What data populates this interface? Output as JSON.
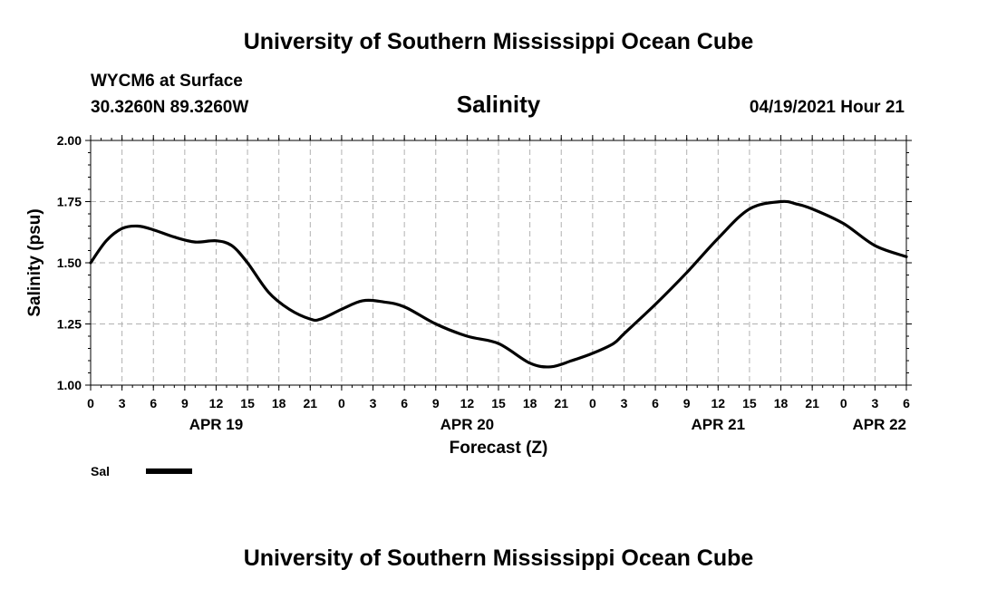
{
  "header": {
    "title_top": "University of Southern Mississippi Ocean Cube",
    "station": "WYCM6 at Surface",
    "coords": "30.3260N  89.3260W",
    "datetime": "04/19/2021 Hour 21",
    "title_bottom": "University of Southern Mississippi Ocean Cube"
  },
  "chart_data": {
    "type": "line",
    "title": "Salinity",
    "xlabel": "Forecast (Z)",
    "ylabel": "Salinity (psu)",
    "xlim": [
      0,
      78
    ],
    "ylim": [
      1.0,
      2.0
    ],
    "y_ticks": [
      "1.00",
      "1.25",
      "1.50",
      "1.75",
      "2.00"
    ],
    "y_tick_values": [
      1.0,
      1.25,
      1.5,
      1.75,
      2.0
    ],
    "x_ticks": [
      "0",
      "3",
      "6",
      "9",
      "12",
      "15",
      "18",
      "21",
      "0",
      "3",
      "6",
      "9",
      "12",
      "15",
      "18",
      "21",
      "0",
      "3",
      "6",
      "9",
      "12",
      "15",
      "18",
      "21",
      "0",
      "3",
      "6"
    ],
    "date_labels": [
      {
        "label": "APR 19",
        "hour": 12
      },
      {
        "label": "APR 20",
        "hour": 36
      },
      {
        "label": "APR 21",
        "hour": 60
      },
      {
        "label": "APR 22",
        "hour": 78
      }
    ],
    "grid": true,
    "line_color": "#000000",
    "series": [
      {
        "name": "Sal",
        "x": [
          0,
          1.5,
          3,
          4.5,
          6,
          8,
          10,
          12,
          13.5,
          15,
          17,
          19,
          21,
          22,
          24,
          26,
          28,
          30,
          33,
          36,
          39,
          42,
          44,
          46,
          48,
          50,
          51,
          54,
          57,
          60,
          63,
          66,
          67.5,
          69,
          72,
          75,
          78
        ],
        "y": [
          1.5,
          1.59,
          1.64,
          1.65,
          1.635,
          1.605,
          1.585,
          1.59,
          1.57,
          1.5,
          1.38,
          1.31,
          1.27,
          1.27,
          1.31,
          1.345,
          1.34,
          1.32,
          1.25,
          1.2,
          1.17,
          1.09,
          1.075,
          1.1,
          1.13,
          1.17,
          1.21,
          1.33,
          1.46,
          1.6,
          1.72,
          1.75,
          1.74,
          1.72,
          1.66,
          1.57,
          1.525
        ]
      }
    ],
    "legend": {
      "label": "Sal",
      "position": "bottom-left"
    }
  }
}
